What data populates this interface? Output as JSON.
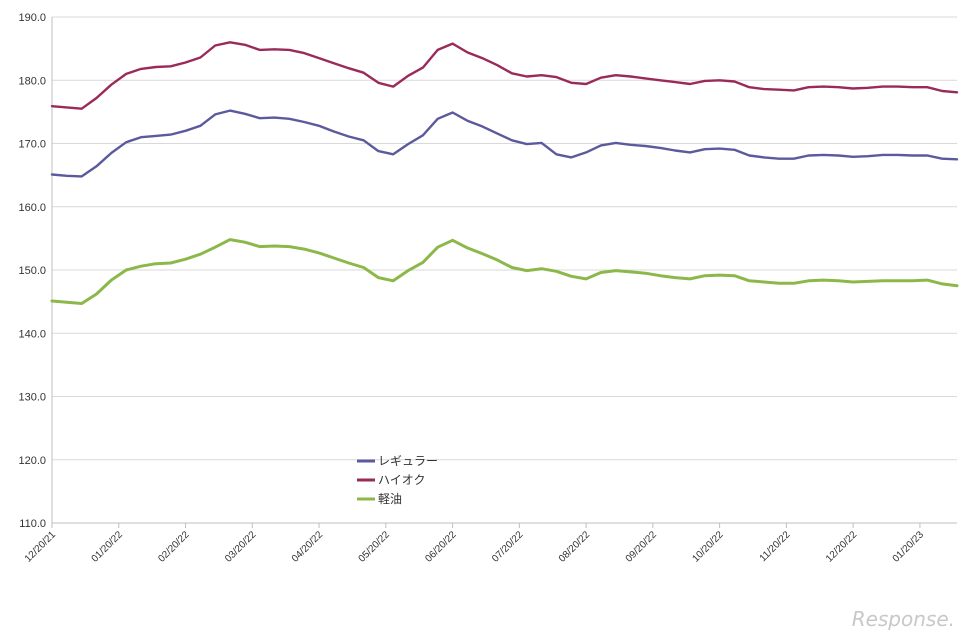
{
  "chart_data": {
    "type": "line",
    "title": "",
    "xlabel": "",
    "ylabel": "",
    "ylim": [
      110,
      190
    ],
    "ytick_values": [
      110,
      120,
      130,
      140,
      150,
      160,
      170,
      180,
      190
    ],
    "ytick_labels": [
      "110.0",
      "120.0",
      "130.0",
      "140.0",
      "150.0",
      "160.0",
      "170.0",
      "180.0",
      "190.0"
    ],
    "xtick_labels": [
      "12/20/21",
      "01/20/22",
      "02/20/22",
      "03/20/22",
      "04/20/22",
      "05/20/22",
      "06/20/22",
      "07/20/22",
      "08/20/22",
      "09/20/22",
      "10/20/22",
      "11/20/22",
      "12/20/22",
      "01/20/23"
    ],
    "grid": true,
    "legend_position": "center-bottom",
    "series": [
      {
        "name": "レギュラー",
        "color": "#5b5a9c",
        "values": [
          165.1,
          164.9,
          164.8,
          166.4,
          168.5,
          170.2,
          171.0,
          171.2,
          171.4,
          172.0,
          172.8,
          174.6,
          175.2,
          174.7,
          174.0,
          174.1,
          173.9,
          173.4,
          172.8,
          171.9,
          171.1,
          170.5,
          168.8,
          168.3,
          169.9,
          171.3,
          173.9,
          174.9,
          173.6,
          172.7,
          171.6,
          170.5,
          169.9,
          170.1,
          168.3,
          167.8,
          168.6,
          169.7,
          170.1,
          169.8,
          169.6,
          169.3,
          168.9,
          168.6,
          169.1,
          169.2,
          169.0,
          168.1,
          167.8,
          167.6,
          167.6,
          168.1,
          168.2,
          168.1,
          167.9,
          168.0,
          168.2,
          168.2,
          168.1,
          168.1,
          167.6,
          167.5
        ]
      },
      {
        "name": "ハイオク",
        "color": "#9a2a5a",
        "values": [
          175.9,
          175.7,
          175.5,
          177.2,
          179.3,
          181.0,
          181.8,
          182.1,
          182.2,
          182.8,
          183.6,
          185.5,
          186.0,
          185.6,
          184.8,
          184.9,
          184.8,
          184.3,
          183.5,
          182.7,
          181.9,
          181.2,
          179.6,
          179.0,
          180.7,
          182.0,
          184.8,
          185.8,
          184.4,
          183.5,
          182.4,
          181.1,
          180.6,
          180.8,
          180.5,
          179.6,
          179.4,
          180.4,
          180.8,
          180.6,
          180.3,
          180.0,
          179.7,
          179.4,
          179.9,
          180.0,
          179.8,
          178.9,
          178.6,
          178.5,
          178.4,
          178.9,
          179.0,
          178.9,
          178.7,
          178.8,
          179.0,
          179.0,
          178.9,
          178.9,
          178.3,
          178.1
        ]
      },
      {
        "name": "軽油",
        "color": "#8cb84a",
        "values": [
          145.1,
          144.9,
          144.7,
          146.2,
          148.4,
          150.0,
          150.6,
          151.0,
          151.1,
          151.7,
          152.5,
          153.6,
          154.8,
          154.4,
          153.7,
          153.8,
          153.7,
          153.3,
          152.7,
          151.9,
          151.1,
          150.4,
          148.8,
          148.3,
          149.9,
          151.2,
          153.6,
          154.7,
          153.5,
          152.6,
          151.6,
          150.4,
          149.9,
          150.2,
          149.8,
          149.0,
          148.6,
          149.6,
          149.9,
          149.7,
          149.5,
          149.1,
          148.8,
          148.6,
          149.1,
          149.2,
          149.1,
          148.3,
          148.1,
          147.9,
          147.9,
          148.3,
          148.4,
          148.3,
          148.1,
          148.2,
          148.3,
          148.3,
          148.3,
          148.4,
          147.8,
          147.5
        ]
      }
    ]
  },
  "watermark": "Response."
}
